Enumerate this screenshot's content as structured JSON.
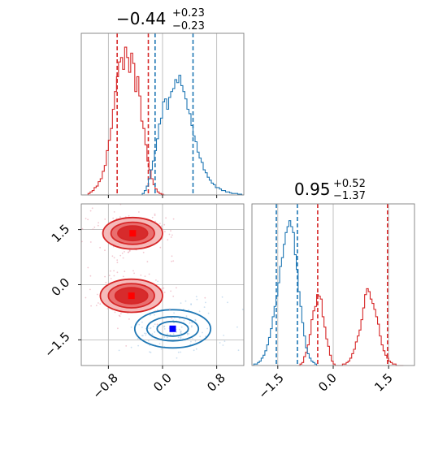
{
  "chart_data": [
    {
      "type": "histogram",
      "panel": "marginal-param-1",
      "title": {
        "value": "−0.44",
        "upper": "+0.23",
        "lower": "−0.23"
      },
      "xlim": [
        -1.2,
        1.2
      ],
      "ylim": [
        0,
        1
      ],
      "grid": true,
      "series": [
        {
          "color": "#d62728",
          "bins": [
            -1.1,
            -1.07,
            -1.04,
            -1.01,
            -0.98,
            -0.95,
            -0.92,
            -0.89,
            -0.86,
            -0.83,
            -0.8,
            -0.77,
            -0.74,
            -0.71,
            -0.68,
            -0.65,
            -0.62,
            -0.59,
            -0.56,
            -0.53,
            -0.5,
            -0.47,
            -0.44,
            -0.41,
            -0.38,
            -0.35,
            -0.32,
            -0.29,
            -0.26,
            -0.23,
            -0.2,
            -0.17,
            -0.14,
            -0.11,
            -0.08,
            -0.05,
            -0.02,
            0.01
          ],
          "density": [
            0.01,
            0.02,
            0.03,
            0.05,
            0.06,
            0.09,
            0.11,
            0.16,
            0.2,
            0.3,
            0.37,
            0.45,
            0.58,
            0.7,
            0.8,
            0.9,
            0.93,
            0.85,
            1.0,
            0.93,
            0.83,
            0.96,
            0.89,
            0.7,
            0.8,
            0.67,
            0.5,
            0.45,
            0.34,
            0.23,
            0.17,
            0.11,
            0.07,
            0.04,
            0.02,
            0.01,
            0.005,
            0.0
          ],
          "quantile_lines": [
            -0.67,
            -0.21
          ]
        },
        {
          "color": "#1f77b4",
          "bins": [
            -0.3,
            -0.27,
            -0.24,
            -0.21,
            -0.18,
            -0.15,
            -0.12,
            -0.09,
            -0.06,
            -0.03,
            0.0,
            0.03,
            0.06,
            0.09,
            0.12,
            0.15,
            0.18,
            0.21,
            0.24,
            0.27,
            0.3,
            0.33,
            0.36,
            0.39,
            0.42,
            0.45,
            0.48,
            0.51,
            0.54,
            0.57,
            0.6,
            0.63,
            0.66,
            0.69,
            0.72,
            0.75,
            0.78,
            0.81,
            0.84,
            0.87,
            0.9,
            0.93,
            0.96,
            0.99,
            1.02,
            1.05,
            1.08,
            1.11,
            1.14,
            1.17
          ],
          "density": [
            0.01,
            0.03,
            0.06,
            0.11,
            0.17,
            0.23,
            0.3,
            0.38,
            0.48,
            0.52,
            0.63,
            0.65,
            0.58,
            0.66,
            0.7,
            0.72,
            0.78,
            0.76,
            0.81,
            0.74,
            0.7,
            0.65,
            0.58,
            0.55,
            0.47,
            0.4,
            0.36,
            0.29,
            0.25,
            0.22,
            0.17,
            0.15,
            0.12,
            0.1,
            0.08,
            0.07,
            0.05,
            0.05,
            0.04,
            0.03,
            0.03,
            0.02,
            0.02,
            0.015,
            0.01,
            0.01,
            0.01,
            0.005,
            0.005,
            0.0
          ],
          "quantile_lines": [
            -0.11,
            0.45
          ]
        }
      ]
    },
    {
      "type": "contour",
      "panel": "joint",
      "xlim": [
        -1.2,
        1.2
      ],
      "ylim": [
        -2.2,
        2.2
      ],
      "xticks": [
        "−0.8",
        "0.0",
        "0.8"
      ],
      "yticks": [
        "1.5",
        "0.0",
        "−1.5"
      ],
      "grid": true,
      "series": [
        {
          "color": "#d62728",
          "modes": [
            {
              "x": -0.44,
              "y": 1.4,
              "rx": [
                0.22,
                0.32,
                0.44
              ],
              "ry": [
                0.2,
                0.3,
                0.43
              ]
            },
            {
              "x": -0.46,
              "y": -0.3,
              "rx": [
                0.24,
                0.34,
                0.46
              ],
              "ry": [
                0.22,
                0.33,
                0.45
              ]
            }
          ],
          "marker": [
            [
              -0.44,
              1.4
            ],
            [
              -0.46,
              -0.3
            ]
          ]
        },
        {
          "color": "#1f77b4",
          "modes": [
            {
              "x": 0.15,
              "y": -1.2,
              "rx": [
                0.23,
                0.38,
                0.56
              ],
              "ry": [
                0.2,
                0.33,
                0.52
              ]
            }
          ],
          "marker": [
            [
              0.15,
              -1.2
            ]
          ]
        }
      ]
    },
    {
      "type": "histogram",
      "panel": "marginal-param-2",
      "title": {
        "value": "0.95",
        "upper": "+0.52",
        "lower": "−1.37"
      },
      "xlim": [
        -2.2,
        2.2
      ],
      "ylim": [
        0,
        1
      ],
      "xticks": [
        "−1.5",
        "0.0",
        "1.5"
      ],
      "grid": true,
      "series": [
        {
          "color": "#d62728",
          "bins": [
            -0.95,
            -0.9,
            -0.85,
            -0.8,
            -0.75,
            -0.7,
            -0.65,
            -0.6,
            -0.55,
            -0.5,
            -0.45,
            -0.4,
            -0.35,
            -0.3,
            -0.25,
            -0.2,
            -0.15,
            -0.1,
            -0.05,
            0.0,
            0.05,
            0.1,
            0.15,
            0.2,
            0.25,
            0.3,
            0.35,
            0.4,
            0.45,
            0.5,
            0.55,
            0.6,
            0.65,
            0.7,
            0.75,
            0.8,
            0.85,
            0.9,
            0.95,
            1.0,
            1.05,
            1.1,
            1.15,
            1.2,
            1.25,
            1.3,
            1.35,
            1.4,
            1.45,
            1.5,
            1.55,
            1.6,
            1.65,
            1.7,
            1.75,
            1.8,
            1.85
          ],
          "density": [
            0.0,
            0.01,
            0.02,
            0.06,
            0.09,
            0.14,
            0.21,
            0.31,
            0.37,
            0.4,
            0.48,
            0.47,
            0.45,
            0.33,
            0.26,
            0.18,
            0.13,
            0.07,
            0.03,
            0.01,
            0.0,
            0.0,
            0.0,
            0.0,
            0.01,
            0.01,
            0.02,
            0.03,
            0.05,
            0.08,
            0.11,
            0.16,
            0.2,
            0.24,
            0.31,
            0.39,
            0.48,
            0.52,
            0.5,
            0.45,
            0.42,
            0.38,
            0.33,
            0.28,
            0.2,
            0.14,
            0.1,
            0.07,
            0.05,
            0.03,
            0.02,
            0.01,
            0.01,
            0.0,
            0.0,
            0.0,
            0.0
          ],
          "quantile_lines": [
            -0.42,
            1.47
          ]
        },
        {
          "color": "#1f77b4",
          "bins": [
            -2.15,
            -2.1,
            -2.05,
            -2.0,
            -1.95,
            -1.9,
            -1.85,
            -1.8,
            -1.75,
            -1.7,
            -1.65,
            -1.6,
            -1.55,
            -1.5,
            -1.45,
            -1.4,
            -1.35,
            -1.3,
            -1.25,
            -1.2,
            -1.15,
            -1.1,
            -1.05,
            -1.0,
            -0.95,
            -0.9,
            -0.85,
            -0.8,
            -0.75,
            -0.7,
            -0.65,
            -0.6,
            -0.55,
            -0.5
          ],
          "density": [
            0.01,
            0.01,
            0.02,
            0.03,
            0.05,
            0.07,
            0.1,
            0.14,
            0.19,
            0.25,
            0.33,
            0.4,
            0.47,
            0.56,
            0.67,
            0.73,
            0.82,
            0.9,
            0.94,
            0.98,
            0.94,
            0.9,
            0.75,
            0.65,
            0.5,
            0.4,
            0.29,
            0.2,
            0.12,
            0.08,
            0.05,
            0.03,
            0.02,
            0.01
          ],
          "quantile_lines": [
            -1.54,
            -0.97
          ]
        }
      ]
    }
  ]
}
